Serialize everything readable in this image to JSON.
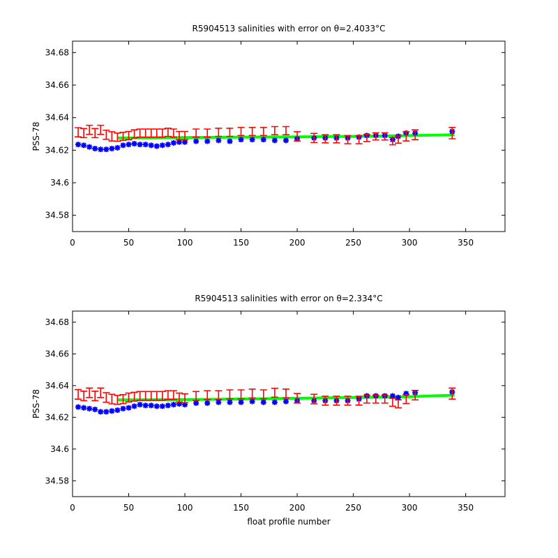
{
  "chart_data": [
    {
      "type": "scatter",
      "title": "R5904513 salinities with error on θ=2.4033°C",
      "xlabel": "",
      "ylabel": "PSS-78",
      "xlim": [
        0,
        385
      ],
      "ylim": [
        34.57,
        34.687
      ],
      "x_ticks": [
        0,
        50,
        100,
        150,
        200,
        250,
        300,
        350
      ],
      "y_ticks": [
        34.58,
        34.6,
        34.62,
        34.64,
        34.66,
        34.68
      ],
      "y_tick_labels": [
        "34.58",
        "34.6",
        "34.62",
        "34.64",
        "34.66",
        "34.68"
      ],
      "grid": false,
      "series": [
        {
          "color": "#0000ff",
          "marker": "star",
          "x": [
            5,
            10,
            15,
            20,
            25,
            30,
            35,
            40,
            45,
            50,
            55,
            60,
            65,
            70,
            75,
            80,
            85,
            90,
            95,
            100,
            110,
            120,
            130,
            140,
            150,
            160,
            170,
            180,
            190,
            200,
            215,
            225,
            235,
            245,
            255,
            262,
            270,
            278,
            285,
            290,
            297,
            305,
            338
          ],
          "y": [
            34.6235,
            34.623,
            34.622,
            34.621,
            34.6205,
            34.6205,
            34.621,
            34.6215,
            34.623,
            34.6235,
            34.624,
            34.6235,
            34.6235,
            34.623,
            34.6225,
            34.623,
            34.6235,
            34.6245,
            34.625,
            34.625,
            34.6255,
            34.6255,
            34.626,
            34.6255,
            34.6265,
            34.6265,
            34.6265,
            34.626,
            34.626,
            34.627,
            34.6275,
            34.6275,
            34.6275,
            34.6275,
            34.628,
            34.629,
            34.629,
            34.629,
            34.6265,
            34.6285,
            34.6305,
            34.6305,
            34.6315
          ]
        },
        {
          "color": "#ff0000",
          "marker": "errorbar",
          "x": [
            5,
            10,
            15,
            20,
            25,
            30,
            35,
            40,
            45,
            50,
            55,
            60,
            65,
            70,
            75,
            80,
            85,
            90,
            95,
            100,
            110,
            120,
            130,
            140,
            150,
            160,
            170,
            180,
            190,
            200,
            215,
            225,
            235,
            245,
            255,
            262,
            270,
            278,
            285,
            290,
            297,
            305,
            338
          ],
          "y": [
            34.631,
            34.6305,
            34.6325,
            34.6305,
            34.6325,
            34.6295,
            34.6285,
            34.628,
            34.6285,
            34.629,
            34.63,
            34.6305,
            34.6305,
            34.6305,
            34.6305,
            34.6305,
            34.631,
            34.6305,
            34.629,
            34.629,
            34.6305,
            34.6305,
            34.631,
            34.631,
            34.6315,
            34.6315,
            34.6315,
            34.632,
            34.632,
            34.6285,
            34.6275,
            34.627,
            34.627,
            34.6265,
            34.6265,
            34.6275,
            34.6285,
            34.6285,
            34.6255,
            34.6265,
            34.6285,
            34.6295,
            34.6305
          ],
          "error": [
            0.0028,
            0.0028,
            0.0028,
            0.0028,
            0.0028,
            0.0028,
            0.0028,
            0.0025,
            0.0025,
            0.0025,
            0.0025,
            0.0025,
            0.0025,
            0.0025,
            0.0025,
            0.0025,
            0.0025,
            0.0025,
            0.0025,
            0.0025,
            0.0025,
            0.0025,
            0.0025,
            0.0025,
            0.0025,
            0.0025,
            0.0025,
            0.0025,
            0.0025,
            0.0028,
            0.0028,
            0.0025,
            0.0025,
            0.0025,
            0.0025,
            0.0022,
            0.0022,
            0.0022,
            0.0022,
            0.0022,
            0.0028,
            0.003,
            0.0035
          ]
        },
        {
          "color": "#00ff00",
          "marker": "line",
          "x": [
            40,
            100,
            150,
            200,
            250,
            300,
            340
          ],
          "y": [
            34.6275,
            34.6278,
            34.628,
            34.6282,
            34.6285,
            34.629,
            34.6295
          ]
        }
      ]
    },
    {
      "type": "scatter",
      "title": "R5904513 salinities with error on θ=2.334°C",
      "xlabel": "float profile number",
      "ylabel": "PSS-78",
      "xlim": [
        0,
        385
      ],
      "ylim": [
        34.57,
        34.687
      ],
      "x_ticks": [
        0,
        50,
        100,
        150,
        200,
        250,
        300,
        350
      ],
      "y_ticks": [
        34.58,
        34.6,
        34.62,
        34.64,
        34.66,
        34.68
      ],
      "y_tick_labels": [
        "34.58",
        "34.6",
        "34.62",
        "34.64",
        "34.66",
        "34.68"
      ],
      "grid": false,
      "series": [
        {
          "color": "#0000ff",
          "marker": "star",
          "x": [
            5,
            10,
            15,
            20,
            25,
            30,
            35,
            40,
            45,
            50,
            55,
            60,
            65,
            70,
            75,
            80,
            85,
            90,
            95,
            100,
            110,
            120,
            130,
            140,
            150,
            160,
            170,
            180,
            190,
            200,
            215,
            225,
            235,
            245,
            255,
            262,
            270,
            278,
            285,
            290,
            297,
            305,
            338
          ],
          "y": [
            34.6265,
            34.626,
            34.6255,
            34.625,
            34.6235,
            34.6235,
            34.624,
            34.6245,
            34.6255,
            34.626,
            34.627,
            34.628,
            34.6275,
            34.6275,
            34.627,
            34.627,
            34.6275,
            34.628,
            34.6285,
            34.628,
            34.629,
            34.629,
            34.6295,
            34.6295,
            34.6295,
            34.63,
            34.6295,
            34.6295,
            34.63,
            34.6305,
            34.6305,
            34.6305,
            34.6305,
            34.6305,
            34.6315,
            34.6335,
            34.6335,
            34.6335,
            34.6335,
            34.6325,
            34.635,
            34.6355,
            34.636
          ]
        },
        {
          "color": "#ff0000",
          "marker": "errorbar",
          "x": [
            5,
            10,
            15,
            20,
            25,
            30,
            35,
            40,
            45,
            50,
            55,
            60,
            65,
            70,
            75,
            80,
            85,
            90,
            95,
            100,
            110,
            120,
            130,
            140,
            150,
            160,
            170,
            180,
            190,
            200,
            215,
            225,
            235,
            245,
            255,
            262,
            270,
            278,
            285,
            290,
            297,
            305,
            338
          ],
          "y": [
            34.6345,
            34.6335,
            34.6355,
            34.6335,
            34.6355,
            34.6325,
            34.6315,
            34.631,
            34.6315,
            34.6325,
            34.633,
            34.6335,
            34.6335,
            34.6335,
            34.6335,
            34.6335,
            34.634,
            34.634,
            34.6325,
            34.632,
            34.6335,
            34.634,
            34.634,
            34.6345,
            34.6345,
            34.635,
            34.6345,
            34.6355,
            34.635,
            34.632,
            34.6315,
            34.6305,
            34.6305,
            34.6305,
            34.6305,
            34.6315,
            34.6315,
            34.6315,
            34.6295,
            34.6285,
            34.6315,
            34.634,
            34.635
          ],
          "error": [
            0.003,
            0.003,
            0.003,
            0.003,
            0.003,
            0.003,
            0.003,
            0.0028,
            0.0028,
            0.0028,
            0.0028,
            0.0028,
            0.0028,
            0.0028,
            0.0028,
            0.0028,
            0.0028,
            0.0028,
            0.0028,
            0.0028,
            0.0028,
            0.0028,
            0.0028,
            0.0028,
            0.0028,
            0.0028,
            0.0028,
            0.0028,
            0.0028,
            0.003,
            0.003,
            0.0028,
            0.0028,
            0.0028,
            0.0028,
            0.0025,
            0.0025,
            0.0025,
            0.0025,
            0.0025,
            0.0028,
            0.003,
            0.0035
          ]
        },
        {
          "color": "#00ff00",
          "marker": "line",
          "x": [
            40,
            100,
            150,
            200,
            250,
            300,
            340
          ],
          "y": [
            34.631,
            34.6312,
            34.6315,
            34.632,
            34.6325,
            34.633,
            34.634
          ]
        }
      ]
    }
  ]
}
